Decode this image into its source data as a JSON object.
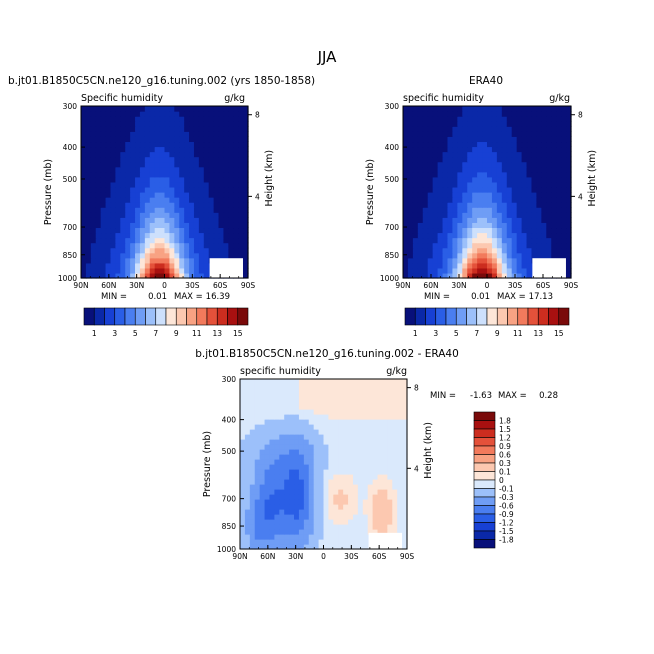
{
  "page_title": "JJA",
  "chart_data": [
    {
      "type": "heatmap",
      "id": "model",
      "title": "b.jt01.B1850C5CN.ne120_g16.tuning.002 (yrs 1850-1858)",
      "left_label": "Specific humidity",
      "right_label": "g/kg",
      "xlabel": "",
      "ylabel": "Pressure (mb)",
      "y2label": "Height (km)",
      "x_ticks": [
        "90N",
        "60N",
        "30N",
        "0",
        "30S",
        "60S",
        "90S"
      ],
      "y_ticks": [
        "300",
        "400",
        "500",
        "700",
        "850",
        "1000"
      ],
      "y2_ticks": [
        "8",
        "4"
      ],
      "min_label": "MIN =",
      "min_value": "0.01",
      "max_label": "MAX =",
      "max_value": "16.39",
      "peak": 16.39,
      "levels": [
        1,
        2,
        3,
        4,
        5,
        6,
        7,
        8,
        9,
        10,
        11,
        12,
        13,
        14,
        15
      ],
      "colorbar_labels": [
        "1",
        "3",
        "5",
        "7",
        "9",
        "11",
        "13",
        "15"
      ]
    },
    {
      "type": "heatmap",
      "id": "obs",
      "title": "ERA40",
      "left_label": "specific humidity",
      "right_label": "g/kg",
      "xlabel": "",
      "ylabel": "Pressure (mb)",
      "y2label": "Height (km)",
      "x_ticks": [
        "90N",
        "60N",
        "30N",
        "0",
        "30S",
        "60S",
        "90S"
      ],
      "y_ticks": [
        "300",
        "400",
        "500",
        "700",
        "850",
        "1000"
      ],
      "y2_ticks": [
        "8",
        "4"
      ],
      "min_label": "MIN =",
      "min_value": "0.01",
      "max_label": "MAX =",
      "max_value": "17.13",
      "peak": 17.13,
      "levels": [
        1,
        2,
        3,
        4,
        5,
        6,
        7,
        8,
        9,
        10,
        11,
        12,
        13,
        14,
        15
      ],
      "colorbar_labels": [
        "1",
        "3",
        "5",
        "7",
        "9",
        "11",
        "13",
        "15"
      ]
    },
    {
      "type": "heatmap",
      "id": "diff",
      "title": "b.jt01.B1850C5CN.ne120_g16.tuning.002 - ERA40",
      "left_label": "specific humidity",
      "right_label": "g/kg",
      "xlabel": "",
      "ylabel": "Pressure (mb)",
      "y2label": "Height (km)",
      "x_ticks": [
        "90N",
        "60N",
        "30N",
        "0",
        "30S",
        "60S",
        "90S"
      ],
      "y_ticks": [
        "300",
        "400",
        "500",
        "700",
        "850",
        "1000"
      ],
      "y2_ticks": [
        "8",
        "4"
      ],
      "min_label": "MIN =",
      "min_value": "-1.63",
      "max_label": "MAX =",
      "max_value": "0.28",
      "levels": [
        -1.8,
        -1.5,
        -1.2,
        -0.9,
        -0.6,
        -0.3,
        -0.1,
        0,
        0.1,
        0.3,
        0.6,
        0.9,
        1.2,
        1.5,
        1.8
      ],
      "colorbar_labels": [
        "1.8",
        "1.5",
        "1.2",
        "0.9",
        "0.6",
        "0.3",
        "0.1",
        "0",
        "-0.1",
        "-0.3",
        "-0.6",
        "-0.9",
        "-1.2",
        "-1.5",
        "-1.8"
      ]
    }
  ],
  "colors": {
    "palette": [
      "#08107a",
      "#0a28a8",
      "#1740d4",
      "#2a5ee6",
      "#4a7ef0",
      "#6f9df5",
      "#9cc0fa",
      "#cde0fc",
      "#fde6d8",
      "#fcc8b0",
      "#f8a283",
      "#f27a5c",
      "#e4513a",
      "#cc2d1f",
      "#a81010",
      "#7a0a0a"
    ],
    "diff_palette": [
      "#08107a",
      "#0a28a8",
      "#1740d4",
      "#2a5ee6",
      "#4a7ef0",
      "#6f9df5",
      "#9cc0fa",
      "#dae9fc",
      "#fde6d8",
      "#fcc8b0",
      "#f8a283",
      "#f27a5c",
      "#e4513a",
      "#cc2d1f",
      "#a81010",
      "#7a0a0a"
    ],
    "background": "#ffffff"
  }
}
